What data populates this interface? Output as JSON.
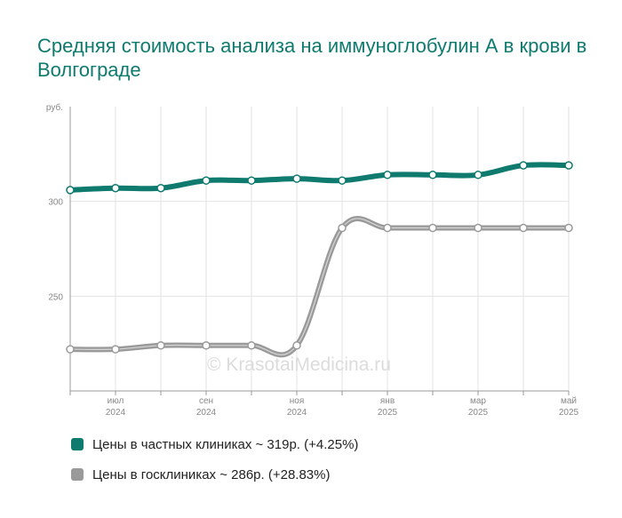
{
  "title": "Средняя стоимость анализа на иммуноглобулин А в крови в Волгограде",
  "colors": {
    "private": "#0f7a6e",
    "public": "#9a9a9a"
  },
  "watermark": "© KrasotaiMedicina.ru",
  "chart_data": {
    "type": "line",
    "yunit": "руб.",
    "ylim": [
      200,
      350
    ],
    "yticks": [
      250,
      300
    ],
    "x": [
      "2024-06",
      "2024-07",
      "2024-08",
      "2024-09",
      "2024-10",
      "2024-11",
      "2024-12",
      "2025-01",
      "2025-02",
      "2025-03",
      "2025-04",
      "2025-05"
    ],
    "xtick_labels": [
      {
        "month": "июл",
        "year": "2024"
      },
      {
        "month": "сен",
        "year": "2024"
      },
      {
        "month": "ноя",
        "year": "2024"
      },
      {
        "month": "янв",
        "year": "2025"
      },
      {
        "month": "мар",
        "year": "2025"
      },
      {
        "month": "май",
        "year": "2025"
      }
    ],
    "grid": true,
    "series": [
      {
        "name": "Цены в частных клиниках ~ 319р. (+4.25%)",
        "color": "#0f7a6e",
        "values": [
          306,
          307,
          307,
          311,
          311,
          312,
          311,
          314,
          314,
          314,
          319,
          319
        ]
      },
      {
        "name": "Цены в госклиниках ~ 286р. (+28.83%)",
        "color": "#9a9a9a",
        "values": [
          222,
          222,
          224,
          224,
          224,
          224,
          286,
          286,
          286,
          286,
          286,
          286
        ]
      }
    ]
  }
}
